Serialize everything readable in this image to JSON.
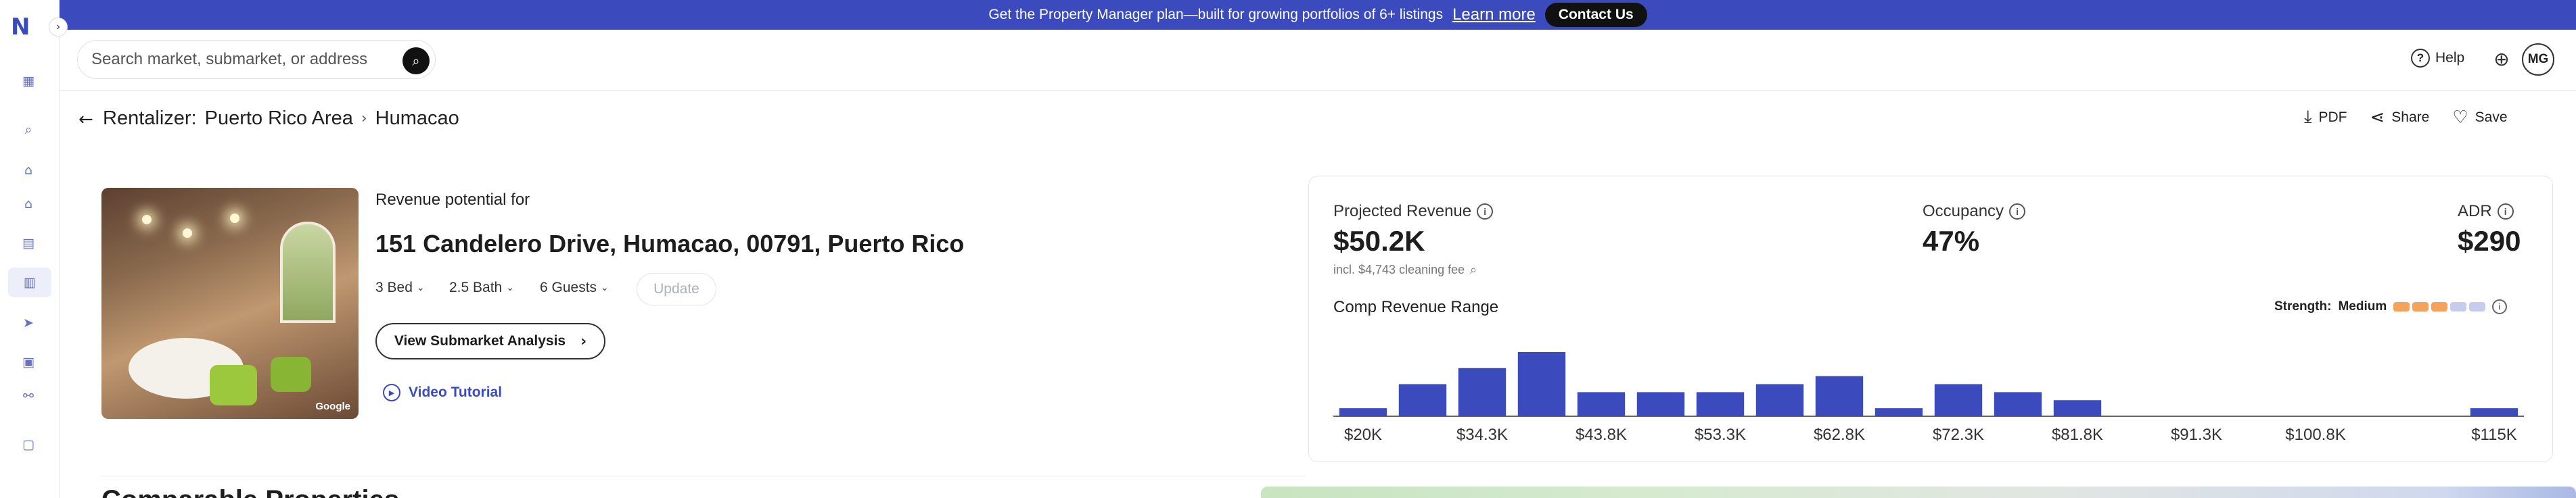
{
  "rail": {
    "logo": "N",
    "expand_icon": "chevron-right-icon",
    "items": [
      {
        "icon": "dashboard-icon",
        "glyph": "▦"
      },
      {
        "icon": "search-icon",
        "glyph": "⌕"
      },
      {
        "icon": "home-lock-icon",
        "glyph": "⌂"
      },
      {
        "icon": "home-icon",
        "glyph": "⌂"
      },
      {
        "icon": "report-icon",
        "glyph": "▤"
      },
      {
        "icon": "rentalizer-icon",
        "glyph": "▥"
      },
      {
        "icon": "send-icon",
        "glyph": "➤"
      },
      {
        "icon": "calendar-icon",
        "glyph": "▣"
      },
      {
        "icon": "link-icon",
        "glyph": "⚯"
      },
      {
        "icon": "saved-icon",
        "glyph": "▢"
      }
    ]
  },
  "banner": {
    "text": "Get the Property Manager plan—built for growing portfolios of 6+ listings",
    "link": "Learn more",
    "button": "Contact Us"
  },
  "search": {
    "placeholder": "Search market, submarket, or address",
    "icon": "search-icon"
  },
  "header": {
    "help": "Help",
    "avatar": "MG",
    "globe_icon": "globe-icon"
  },
  "breadcrumb": {
    "root": "Rentalizer:",
    "market": "Puerto Rico Area",
    "submarket": "Humacao"
  },
  "actions": {
    "pdf": "PDF",
    "share": "Share",
    "save": "Save"
  },
  "property": {
    "photo_credit": "Google",
    "revenue_label": "Revenue potential for",
    "address": "151 Candelero Drive, Humacao, 00791, Puerto Rico",
    "bed": "3 Bed",
    "bath": "2.5 Bath",
    "guests": "6 Guests",
    "update": "Update",
    "submarket_button": "View Submarket Analysis",
    "video_tutorial": "Video Tutorial"
  },
  "metrics": {
    "projected_revenue_label": "Projected Revenue",
    "projected_revenue": "$50.2K",
    "cleaning_note": "incl. $4,743 cleaning fee",
    "occupancy_label": "Occupancy",
    "occupancy": "47%",
    "adr_label": "ADR",
    "adr": "$290"
  },
  "comp_range": {
    "title": "Comp Revenue Range",
    "strength_label": "Strength:",
    "strength_value": "Medium",
    "strength_segments": [
      "#f4a35c",
      "#f4a35c",
      "#f4a35c",
      "#c8ccec",
      "#c8ccec"
    ],
    "bar_color": "#3b4bbd"
  },
  "chart_data": {
    "type": "bar",
    "title": "Comp Revenue Range",
    "tick_labels": [
      "$20K",
      "$34.3K",
      "$43.8K",
      "$53.3K",
      "$62.8K",
      "$72.3K",
      "$81.8K",
      "$91.3K",
      "$100.8K",
      "$115K"
    ],
    "bins": 20,
    "values": [
      1,
      4,
      6,
      8,
      3,
      3,
      3,
      4,
      5,
      1,
      4,
      3,
      2,
      0,
      0,
      0,
      0,
      0,
      0,
      1
    ],
    "ylim": [
      0,
      8
    ]
  },
  "section": {
    "comparables_title": "Comparable Properties"
  }
}
